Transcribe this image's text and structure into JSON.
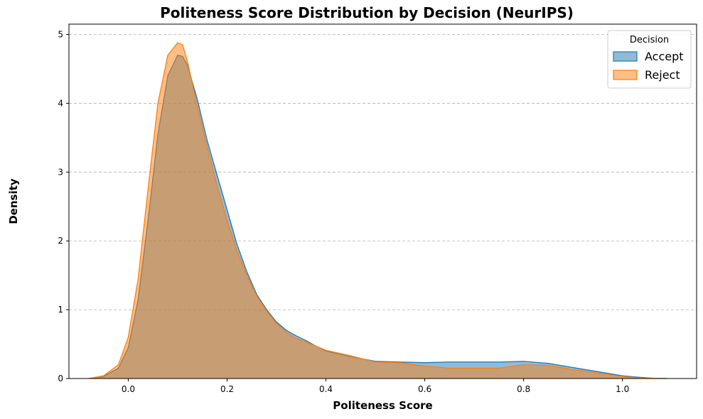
{
  "chart_data": {
    "type": "area",
    "title": "Politeness Score Distribution by Decision (NeurIPS)",
    "xlabel": "Politeness Score",
    "ylabel": "Density",
    "xlim": [
      -0.12,
      1.15
    ],
    "ylim": [
      0,
      5.15
    ],
    "xticks": [
      0.0,
      0.2,
      0.4,
      0.6,
      0.8,
      1.0
    ],
    "xtick_labels": [
      "0.0",
      "0.2",
      "0.4",
      "0.6",
      "0.8",
      "1.0"
    ],
    "yticks": [
      0,
      1,
      2,
      3,
      4,
      5
    ],
    "ytick_labels": [
      "0",
      "1",
      "2",
      "3",
      "4",
      "5"
    ],
    "grid": "y-dashed",
    "legend": {
      "title": "Decision",
      "position": "top-right"
    },
    "series": [
      {
        "name": "Accept",
        "color": "#1f77b4",
        "fill": "#1f77b4",
        "x": [
          -0.08,
          -0.05,
          -0.02,
          0.0,
          0.02,
          0.04,
          0.06,
          0.08,
          0.1,
          0.11,
          0.12,
          0.14,
          0.16,
          0.18,
          0.2,
          0.22,
          0.24,
          0.26,
          0.28,
          0.3,
          0.32,
          0.34,
          0.36,
          0.38,
          0.4,
          0.45,
          0.5,
          0.55,
          0.6,
          0.65,
          0.7,
          0.75,
          0.8,
          0.85,
          0.9,
          0.95,
          1.0,
          1.03,
          1.06,
          1.09
        ],
        "y": [
          0.0,
          0.03,
          0.15,
          0.45,
          1.15,
          2.3,
          3.55,
          4.4,
          4.7,
          4.68,
          4.55,
          4.05,
          3.45,
          2.95,
          2.45,
          1.95,
          1.55,
          1.22,
          1.0,
          0.82,
          0.7,
          0.62,
          0.55,
          0.47,
          0.4,
          0.32,
          0.25,
          0.24,
          0.23,
          0.24,
          0.24,
          0.24,
          0.25,
          0.22,
          0.16,
          0.1,
          0.04,
          0.02,
          0.005,
          0.0
        ]
      },
      {
        "name": "Reject",
        "color": "#ff7f0e",
        "fill": "#ff7f0e",
        "x": [
          -0.08,
          -0.05,
          -0.02,
          0.0,
          0.02,
          0.04,
          0.06,
          0.08,
          0.1,
          0.11,
          0.12,
          0.14,
          0.16,
          0.18,
          0.2,
          0.22,
          0.24,
          0.26,
          0.28,
          0.3,
          0.32,
          0.34,
          0.36,
          0.38,
          0.4,
          0.45,
          0.5,
          0.55,
          0.6,
          0.65,
          0.7,
          0.75,
          0.8,
          0.85,
          0.9,
          0.95,
          1.0,
          1.03,
          1.06,
          1.09
        ],
        "y": [
          0.0,
          0.04,
          0.2,
          0.6,
          1.45,
          2.75,
          4.0,
          4.7,
          4.88,
          4.85,
          4.6,
          3.95,
          3.35,
          2.8,
          2.3,
          1.85,
          1.5,
          1.2,
          0.98,
          0.8,
          0.67,
          0.58,
          0.53,
          0.47,
          0.41,
          0.33,
          0.24,
          0.23,
          0.18,
          0.15,
          0.15,
          0.15,
          0.2,
          0.19,
          0.13,
          0.08,
          0.03,
          0.01,
          0.003,
          0.0
        ]
      }
    ]
  }
}
